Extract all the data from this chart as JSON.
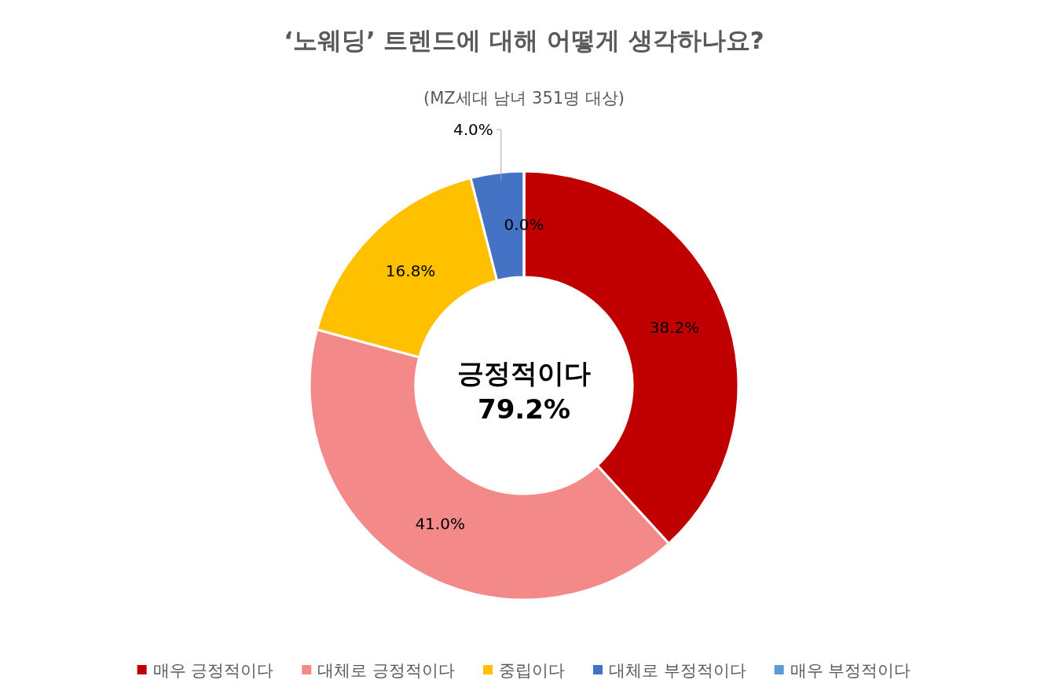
{
  "chart_data": {
    "type": "donut",
    "title": "‘노웨딩’ 트렌드에 대해 어떻게 생각하나요?",
    "subtitle": "(MZ세대 남녀 351명 대상)",
    "categories": [
      "매우 긍정적이다",
      "대체로 긍정적이다",
      "중립이다",
      "대체로 부정적이다",
      "매우 부정적이다"
    ],
    "values": [
      38.2,
      41.0,
      16.8,
      4.0,
      0.0
    ],
    "colors": [
      "#c00000",
      "#f4898a",
      "#ffc000",
      "#4472c4",
      "#5b9bd5"
    ],
    "value_labels": [
      "38.2%",
      "41.0%",
      "16.8%",
      "4.0%",
      "0.0%"
    ],
    "annotations": [
      "긍정적이다",
      "79.2%"
    ],
    "legend": "bottom"
  }
}
